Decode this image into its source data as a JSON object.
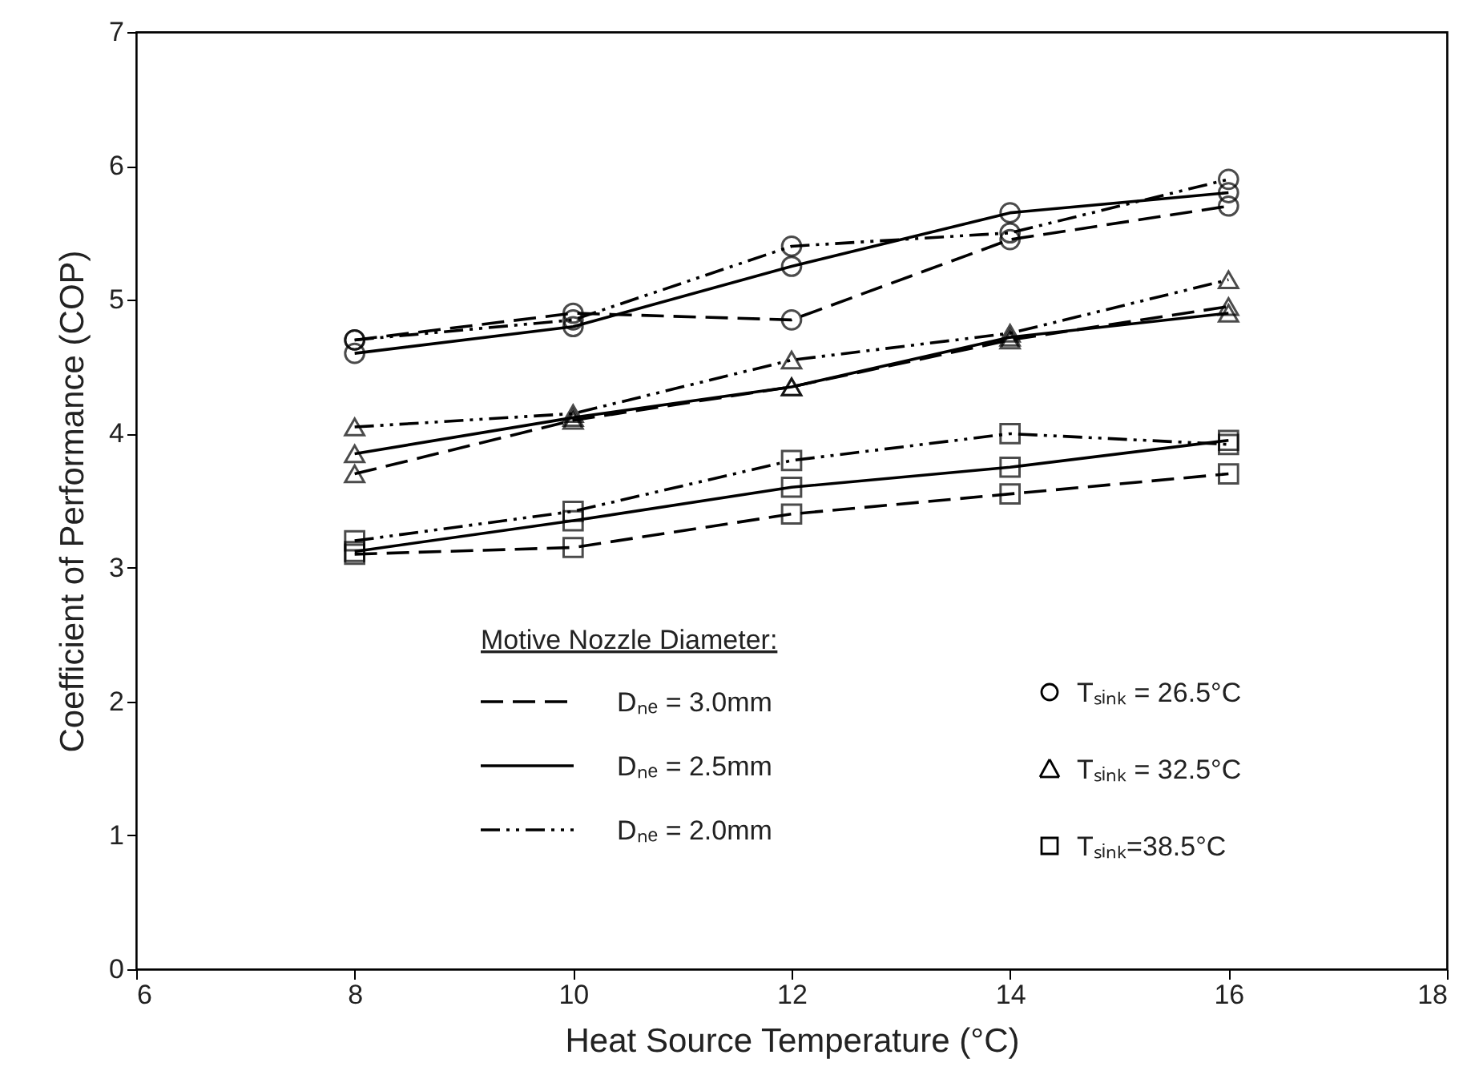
{
  "chart_data": {
    "type": "line",
    "xlabel": "Heat Source Temperature (°C)",
    "ylabel": "Coefficient of Performance (COP)",
    "legend_title": "Motive Nozzle Diameter:",
    "annotations": [
      "Dₙₑ = 3.0mm",
      "Dₙₑ = 2.5mm",
      "Dₙₑ = 2.0mm",
      "Tₛᵢₙₖ = 26.5°C",
      "Tₛᵢₙₖ = 32.5°C",
      "Tₛᵢₙₖ=38.5°C"
    ],
    "x": [
      8,
      10,
      12,
      14,
      16
    ],
    "xlim": [
      6,
      18
    ],
    "xticks": [
      6,
      8,
      10,
      12,
      14,
      16,
      18
    ],
    "ylim": [
      0,
      7
    ],
    "yticks": [
      0,
      1,
      2,
      3,
      4,
      5,
      6,
      7
    ],
    "series": [
      {
        "line_style": "dashed",
        "marker": "circle",
        "color": "#000000",
        "values": [
          4.7,
          4.9,
          4.85,
          5.45,
          5.7
        ]
      },
      {
        "line_style": "solid",
        "marker": "circle",
        "color": "#000000",
        "values": [
          4.6,
          4.8,
          5.25,
          5.65,
          5.8
        ]
      },
      {
        "line_style": "dashdot",
        "marker": "circle",
        "color": "#000000",
        "values": [
          4.7,
          4.85,
          5.4,
          5.5,
          5.9
        ]
      },
      {
        "line_style": "dashed",
        "marker": "triangle",
        "color": "#000000",
        "values": [
          3.7,
          4.1,
          4.35,
          4.7,
          4.95
        ]
      },
      {
        "line_style": "solid",
        "marker": "triangle",
        "color": "#000000",
        "values": [
          3.85,
          4.12,
          4.35,
          4.72,
          4.9
        ]
      },
      {
        "line_style": "dashdot",
        "marker": "triangle",
        "color": "#000000",
        "values": [
          4.05,
          4.15,
          4.55,
          4.75,
          5.15
        ]
      },
      {
        "line_style": "dashed",
        "marker": "square",
        "color": "#000000",
        "values": [
          3.1,
          3.15,
          3.4,
          3.55,
          3.7
        ]
      },
      {
        "line_style": "solid",
        "marker": "square",
        "color": "#000000",
        "values": [
          3.12,
          3.35,
          3.6,
          3.75,
          3.95
        ]
      },
      {
        "line_style": "dashdot",
        "marker": "square",
        "color": "#000000",
        "values": [
          3.2,
          3.42,
          3.8,
          4.0,
          3.92
        ]
      }
    ]
  }
}
